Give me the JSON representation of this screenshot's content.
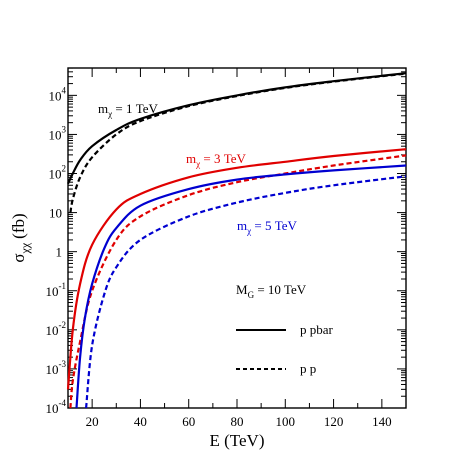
{
  "chart_data": {
    "type": "line",
    "xlabel": "E (TeV)",
    "ylabel": {
      "main": "σ",
      "sub": "χχ",
      "unit": "(fb)"
    },
    "xlim": [
      10,
      150
    ],
    "ylim_log10": [
      -4,
      4.7
    ],
    "y_scale": "log",
    "grid": false,
    "x_ticks": [
      20,
      40,
      60,
      80,
      100,
      120,
      140
    ],
    "y_ticks": [
      {
        "value": 0.0001,
        "base": "10",
        "exp": "-4"
      },
      {
        "value": 0.001,
        "base": "10",
        "exp": "-3"
      },
      {
        "value": 0.01,
        "base": "10",
        "exp": "-2"
      },
      {
        "value": 0.1,
        "base": "10",
        "exp": "-1"
      },
      {
        "value": 1,
        "base": "1",
        "exp": ""
      },
      {
        "value": 10,
        "base": "10",
        "exp": ""
      },
      {
        "value": 100,
        "base": "10",
        "exp": "2"
      },
      {
        "value": 1000,
        "base": "10",
        "exp": "3"
      },
      {
        "value": 10000,
        "base": "10",
        "exp": "4"
      }
    ],
    "series": [
      {
        "group": "m1",
        "style": "solid",
        "color": "#000000",
        "x": [
          10,
          12,
          15,
          20,
          30,
          40,
          60,
          80,
          100,
          120,
          150
        ],
        "y": [
          55,
          100,
          220,
          500,
          1300,
          2500,
          5600,
          10000,
          16000,
          23000,
          37000
        ]
      },
      {
        "group": "m1",
        "style": "dashed",
        "color": "#000000",
        "x": [
          11,
          12,
          15,
          20,
          30,
          40,
          60,
          80,
          100,
          120,
          150
        ],
        "y": [
          10,
          22,
          80,
          260,
          1000,
          2200,
          5300,
          9600,
          15500,
          22500,
          36000
        ]
      },
      {
        "group": "m3",
        "style": "solid",
        "color": "#e00000",
        "x": [
          10,
          12,
          15,
          20,
          30,
          40,
          60,
          80,
          100,
          120,
          150
        ],
        "y": [
          0.0003,
          0.01,
          0.15,
          1.5,
          12,
          30,
          80,
          140,
          200,
          280,
          420
        ]
      },
      {
        "group": "m3",
        "style": "dashed",
        "color": "#e00000",
        "x": [
          11,
          12,
          15,
          20,
          30,
          40,
          60,
          80,
          100,
          120,
          150
        ],
        "y": [
          0.0001,
          0.0005,
          0.005,
          0.1,
          2,
          8,
          28,
          60,
          100,
          160,
          290
        ]
      },
      {
        "group": "m5",
        "style": "solid",
        "color": "#0000d0",
        "x": [
          13.5,
          15,
          17,
          20,
          25,
          30,
          40,
          60,
          80,
          100,
          120,
          150
        ],
        "y": [
          0.0001,
          0.002,
          0.02,
          0.15,
          1.2,
          4,
          15,
          40,
          70,
          95,
          120,
          160
        ]
      },
      {
        "group": "m5",
        "style": "dashed",
        "color": "#0000d0",
        "x": [
          17.5,
          20,
          25,
          30,
          40,
          60,
          80,
          100,
          120,
          150
        ],
        "y": [
          0.0001,
          0.004,
          0.08,
          0.4,
          2,
          8,
          18,
          32,
          50,
          85
        ]
      }
    ],
    "annotations": [
      {
        "text_main": "m",
        "text_sub": "χ",
        "text_rest": " = 1 TeV",
        "color": "#000000"
      },
      {
        "text_main": "m",
        "text_sub": "χ",
        "text_rest": " = 3 TeV",
        "color": "#e00000"
      },
      {
        "text_main": "m",
        "text_sub": "χ",
        "text_rest": " = 5 TeV",
        "color": "#0000d0"
      },
      {
        "text_main": "M",
        "text_sub": "G",
        "text_rest": " = 10 TeV",
        "color": "#000000"
      }
    ],
    "legend": {
      "placement": "bottom-right",
      "entries": [
        {
          "label": "p pbar",
          "style": "solid"
        },
        {
          "label": "p p",
          "style": "dashed"
        }
      ]
    }
  }
}
